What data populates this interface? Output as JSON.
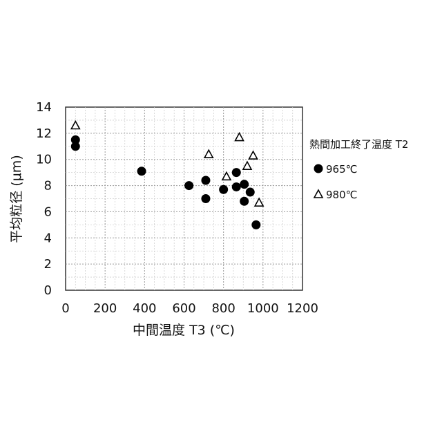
{
  "chart_data": {
    "type": "scatter",
    "title": "",
    "xlabel": "中間温度 T3 (℃)",
    "ylabel": "平均粒径 (μm)",
    "xlim": [
      0,
      1200
    ],
    "ylim": [
      0,
      14
    ],
    "xticks": [
      0,
      200,
      400,
      600,
      800,
      1000,
      1200
    ],
    "yticks": [
      0,
      2,
      4,
      6,
      8,
      10,
      12,
      14
    ],
    "xtick_labels": [
      "0",
      "200",
      "400",
      "600",
      "800",
      "1000",
      "1200"
    ],
    "ytick_labels": [
      "0",
      "2",
      "4",
      "6",
      "8",
      "10",
      "12",
      "14"
    ],
    "grid": true,
    "legend_title": "熱間加工終了温度 T2",
    "legend_position": "right",
    "series": [
      {
        "name": "965℃",
        "marker": "filled-circle",
        "color": "#000000",
        "points": [
          [
            50,
            11.5
          ],
          [
            50,
            11.0
          ],
          [
            385,
            9.1
          ],
          [
            625,
            8.0
          ],
          [
            710,
            8.4
          ],
          [
            710,
            7.0
          ],
          [
            800,
            7.7
          ],
          [
            865,
            9.0
          ],
          [
            865,
            7.9
          ],
          [
            905,
            8.1
          ],
          [
            905,
            6.8
          ],
          [
            935,
            7.5
          ],
          [
            965,
            5.0
          ]
        ]
      },
      {
        "name": "980℃",
        "marker": "open-triangle",
        "color": "#000000",
        "points": [
          [
            50,
            12.6
          ],
          [
            725,
            10.4
          ],
          [
            815,
            8.7
          ],
          [
            880,
            11.7
          ],
          [
            920,
            9.5
          ],
          [
            950,
            10.3
          ],
          [
            980,
            6.7
          ]
        ]
      }
    ]
  }
}
